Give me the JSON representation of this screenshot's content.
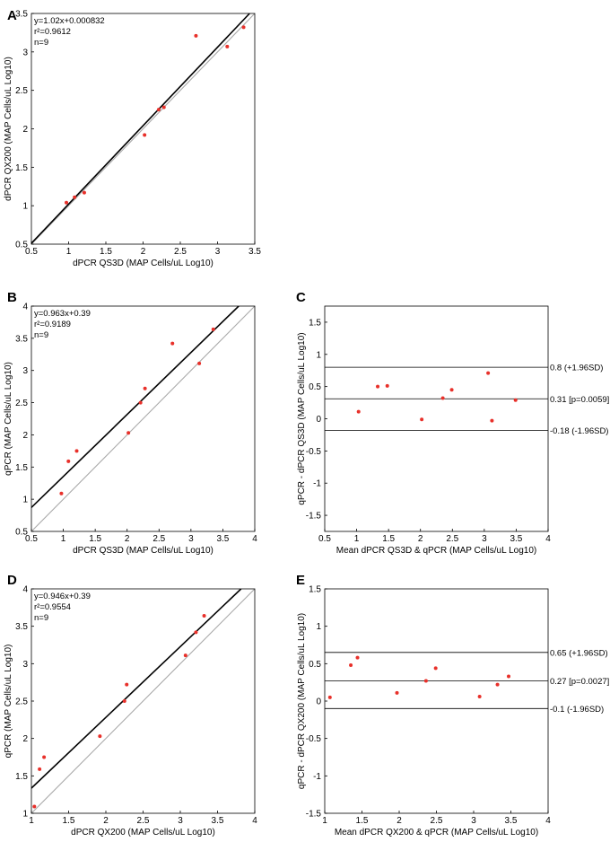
{
  "chart_data": [
    {
      "panel": "A",
      "type": "scatter",
      "xlabel": "dPCR QS3D (MAP Cells/uL Log10)",
      "ylabel": "dPCR QX200 (MAP Cells/uL Log10)",
      "xlim": [
        0.5,
        3.5
      ],
      "ylim": [
        0.5,
        3.5
      ],
      "xticks": [
        "0.5",
        "1",
        "1.5",
        "2",
        "2.5",
        "3",
        "3.5"
      ],
      "yticks": [
        "0.5",
        "1",
        "1.5",
        "2",
        "2.5",
        "3",
        "3.5"
      ],
      "stats": [
        "y=1.02x+0.000832",
        "r²=0.9612",
        "n=9"
      ],
      "regression": {
        "slope": 1.02,
        "intercept": 0.000832
      },
      "identity_line": true,
      "x": [
        0.97,
        1.08,
        1.21,
        2.02,
        2.21,
        2.28,
        2.71,
        3.13,
        3.35
      ],
      "y": [
        1.04,
        1.11,
        1.17,
        1.92,
        2.25,
        2.28,
        3.21,
        3.07,
        3.32
      ]
    },
    {
      "panel": "B",
      "type": "scatter",
      "xlabel": "dPCR QS3D (MAP Cells/uL Log10)",
      "ylabel": "qPCR (MAP Cells/uL Log10)",
      "xlim": [
        0.5,
        4
      ],
      "ylim": [
        0.5,
        4
      ],
      "xticks": [
        "0.5",
        "1",
        "1.5",
        "2",
        "2.5",
        "3",
        "3.5",
        "4"
      ],
      "yticks": [
        "0.5",
        "1",
        "1.5",
        "2",
        "2.5",
        "3",
        "3.5",
        "4"
      ],
      "stats": [
        "y=0.963x+0.39",
        "r²=0.9189",
        "n=9"
      ],
      "regression": {
        "slope": 0.963,
        "intercept": 0.39
      },
      "identity_line": true,
      "x": [
        0.97,
        1.08,
        1.21,
        2.02,
        2.21,
        2.28,
        2.71,
        3.13,
        3.35
      ],
      "y": [
        1.09,
        1.59,
        1.75,
        2.03,
        2.5,
        2.72,
        3.42,
        3.11,
        3.64
      ]
    },
    {
      "panel": "C",
      "type": "scatter",
      "xlabel": "Mean dPCR QS3D & qPCR (MAP Cells/uL Log10)",
      "ylabel": "qPCR - dPCR QS3D (MAP Cells/uL Log10)",
      "xlim": [
        0.5,
        4
      ],
      "ylim": [
        -1.75,
        1.75
      ],
      "xticks": [
        "0.5",
        "1",
        "1.5",
        "2",
        "2.5",
        "3",
        "3.5",
        "4"
      ],
      "yticks": [
        "-1.5",
        "-1",
        "-0.5",
        "0",
        "0.5",
        "1",
        "1.5"
      ],
      "hlines": [
        {
          "y": 0.8,
          "label": "0.8 (+1.96SD)"
        },
        {
          "y": 0.31,
          "label": "0.31 [p=0.0059]"
        },
        {
          "y": -0.18,
          "label": "-0.18 (-1.96SD)"
        }
      ],
      "x": [
        1.03,
        1.33,
        1.48,
        2.02,
        2.35,
        2.49,
        3.06,
        3.12,
        3.49
      ],
      "y": [
        0.11,
        0.5,
        0.51,
        -0.01,
        0.32,
        0.45,
        0.71,
        -0.03,
        0.29
      ]
    },
    {
      "panel": "D",
      "type": "scatter",
      "xlabel": "dPCR QX200 (MAP Cells/uL Log10)",
      "ylabel": "qPCR (MAP Cells/uL Log10)",
      "xlim": [
        1,
        4
      ],
      "ylim": [
        1,
        4
      ],
      "xticks": [
        "1",
        "1.5",
        "2",
        "2.5",
        "3",
        "3.5",
        "4"
      ],
      "yticks": [
        "1",
        "1.5",
        "2",
        "2.5",
        "3",
        "3.5",
        "4"
      ],
      "stats": [
        "y=0.946x+0.39",
        "r²=0.9554",
        "n=9"
      ],
      "regression": {
        "slope": 0.946,
        "intercept": 0.39
      },
      "identity_line": true,
      "x": [
        1.04,
        1.11,
        1.17,
        1.92,
        2.25,
        2.28,
        3.07,
        3.21,
        3.32
      ],
      "y": [
        1.09,
        1.59,
        1.75,
        2.03,
        2.5,
        2.72,
        3.11,
        3.42,
        3.64
      ]
    },
    {
      "panel": "E",
      "type": "scatter",
      "xlabel": "Mean dPCR QX200 & qPCR (MAP Cells/uL Log10)",
      "ylabel": "qPCR - dPCR QX200 (MAP Cells/uL Log10)",
      "xlim": [
        1,
        4
      ],
      "ylim": [
        -1.5,
        1.5
      ],
      "xticks": [
        "1",
        "1.5",
        "2",
        "2.5",
        "3",
        "3.5",
        "4"
      ],
      "yticks": [
        "-1.5",
        "-1",
        "-0.5",
        "0",
        "0.5",
        "1",
        "1.5"
      ],
      "hlines": [
        {
          "y": 0.65,
          "label": "0.65 (+1.96SD)"
        },
        {
          "y": 0.27,
          "label": "0.27 [p=0.0027]"
        },
        {
          "y": -0.1,
          "label": "-0.1 (-1.96SD)"
        }
      ],
      "x": [
        1.07,
        1.35,
        1.44,
        1.97,
        2.36,
        2.49,
        3.08,
        3.32,
        3.47
      ],
      "y": [
        0.05,
        0.48,
        0.58,
        0.11,
        0.27,
        0.44,
        0.06,
        0.22,
        0.33
      ]
    }
  ]
}
